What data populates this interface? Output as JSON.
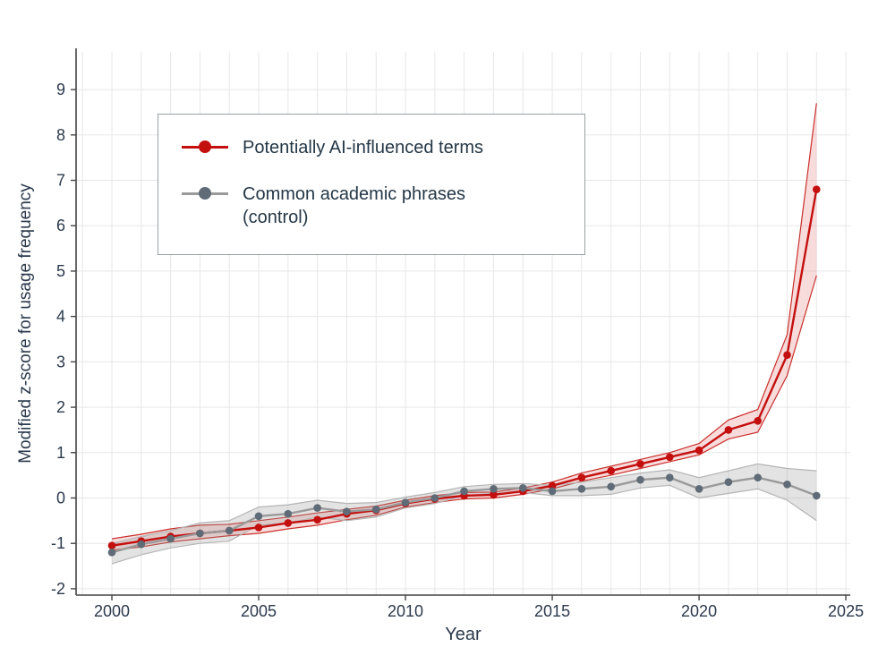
{
  "chart_data": {
    "type": "line",
    "title": "",
    "xlabel": "Year",
    "ylabel": "Modified z-score for usage frequency",
    "xlim": [
      1998.78,
      2025.15
    ],
    "ylim": [
      -2.14,
      9.83
    ],
    "x_ticks": [
      2000,
      2005,
      2010,
      2015,
      2020,
      2025
    ],
    "y_ticks": [
      -2,
      -1,
      0,
      1,
      2,
      3,
      4,
      5,
      6,
      7,
      8,
      9
    ],
    "grid": {
      "on": true,
      "color": "#e7e7e7",
      "minor_x_step": 1
    },
    "axis_text_color": "#2b3a4d",
    "axis_line_color": "#444444",
    "x": [
      2000,
      2001,
      2002,
      2003,
      2004,
      2005,
      2006,
      2007,
      2008,
      2009,
      2010,
      2011,
      2012,
      2013,
      2014,
      2015,
      2016,
      2017,
      2018,
      2019,
      2020,
      2021,
      2022,
      2023,
      2024
    ],
    "series": [
      {
        "name": "Potentially AI-influenced terms",
        "color": "#c40f0f",
        "marker_color": "#c40f0f",
        "band_fill": "#e06060",
        "band_opacity": 0.22,
        "band_edge": "#c9302c",
        "values": [
          -1.05,
          -0.95,
          -0.85,
          -0.78,
          -0.72,
          -0.65,
          -0.55,
          -0.48,
          -0.35,
          -0.27,
          -0.12,
          -0.02,
          0.05,
          0.07,
          0.15,
          0.27,
          0.45,
          0.6,
          0.75,
          0.9,
          1.05,
          1.5,
          1.7,
          3.15,
          6.8
        ],
        "upper": [
          -0.9,
          -0.8,
          -0.68,
          -0.6,
          -0.58,
          -0.5,
          -0.42,
          -0.33,
          -0.25,
          -0.18,
          -0.05,
          0.05,
          0.12,
          0.13,
          0.22,
          0.35,
          0.55,
          0.7,
          0.85,
          1.0,
          1.2,
          1.72,
          1.95,
          3.6,
          8.7
        ],
        "lower": [
          -1.15,
          -1.08,
          -0.97,
          -0.9,
          -0.83,
          -0.78,
          -0.68,
          -0.6,
          -0.48,
          -0.38,
          -0.2,
          -0.1,
          -0.02,
          0.0,
          0.08,
          0.2,
          0.37,
          0.5,
          0.65,
          0.8,
          0.95,
          1.3,
          1.45,
          2.7,
          4.9
        ]
      },
      {
        "name": "Common academic phrases (control)",
        "color": "#9a9a9a",
        "marker_color": "#5f6b76",
        "band_fill": "#9a9a9a",
        "band_opacity": 0.28,
        "band_edge": "#b5b5b5",
        "values": [
          -1.2,
          -1.02,
          -0.9,
          -0.78,
          -0.72,
          -0.4,
          -0.35,
          -0.22,
          -0.3,
          -0.25,
          -0.1,
          0.0,
          0.15,
          0.2,
          0.22,
          0.15,
          0.2,
          0.25,
          0.4,
          0.45,
          0.2,
          0.35,
          0.45,
          0.3,
          0.05
        ],
        "upper": [
          -1.0,
          -0.85,
          -0.72,
          -0.55,
          -0.5,
          -0.2,
          -0.15,
          -0.05,
          -0.12,
          -0.1,
          0.02,
          0.12,
          0.25,
          0.3,
          0.32,
          0.28,
          0.35,
          0.45,
          0.55,
          0.62,
          0.45,
          0.6,
          0.75,
          0.65,
          0.6
        ],
        "lower": [
          -1.45,
          -1.25,
          -1.1,
          -1.0,
          -0.95,
          -0.6,
          -0.55,
          -0.42,
          -0.5,
          -0.42,
          -0.22,
          -0.12,
          0.05,
          0.1,
          0.12,
          0.05,
          0.05,
          0.08,
          0.22,
          0.28,
          0.0,
          0.1,
          0.2,
          -0.05,
          -0.5
        ]
      }
    ],
    "legend": {
      "position": "top-left",
      "entries": [
        "Potentially AI-influenced terms",
        "Common academic phrases\n(control)"
      ]
    }
  }
}
